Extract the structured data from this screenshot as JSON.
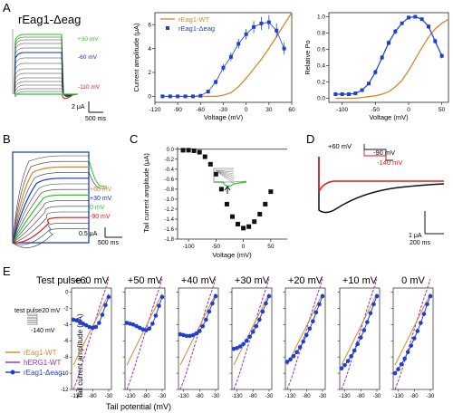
{
  "figure": {
    "panel_letters": [
      "A",
      "B",
      "C",
      "D",
      "E"
    ],
    "colors": {
      "wt": "#d08a2a",
      "deag": "#1f3fd0",
      "herg": "#9a2fb0",
      "green": "#22cc22",
      "blue_trace": "#1030c0",
      "red": "#e01818",
      "black": "#111111"
    }
  },
  "panelA": {
    "title": "rEag1-Δeag",
    "trace_labels": [
      "+30 mV",
      "-60 mV",
      "-110 mV"
    ],
    "scalebar_y": "2 μA",
    "scalebar_x": "500 ms"
  },
  "panelB": {
    "trace_labels": [
      "+60 mV",
      "+30 mV",
      "0 mV",
      "-90 mV"
    ],
    "scalebar_y": "0.5 μA",
    "scalebar_x": "500 ms"
  },
  "panelD": {
    "protocol_labels": [
      "+60 mV",
      "-90 mV",
      "-140 mV"
    ],
    "scalebar_y": "1 μA",
    "scalebar_x": "200 ms"
  },
  "panelE": {
    "header": "Test pulse :",
    "protocol_labels": [
      "test pulse",
      "-20 mV",
      "-140 mV"
    ],
    "legend": [
      "rEag1-WT",
      "hERG1-WT",
      "rEag1-Δeag"
    ],
    "ylabel": "Tail current amplitude (μA)",
    "xlabel": "Tail potential (mV)",
    "xticks": [
      "-130",
      "-80",
      "-30"
    ],
    "yticks": [
      "0",
      "-2",
      "-4",
      "-6",
      "-8",
      "-10",
      "-12"
    ]
  },
  "chart_data": [
    {
      "type": "line",
      "panel": "A-middle",
      "xlabel": "Voltage (mV)",
      "ylabel": "Current amplitude (μA)",
      "xlim": [
        -120,
        60
      ],
      "ylim": [
        -0.5,
        7
      ],
      "xticks": [
        "-120",
        "-90",
        "-60",
        "-30",
        "0",
        "30",
        "60"
      ],
      "yticks": [
        "0",
        "2",
        "4",
        "6"
      ],
      "legend_position": "top-left",
      "series": [
        {
          "name": "rEag1-WT",
          "x": [
            -110,
            -100,
            -90,
            -80,
            -70,
            -60,
            -50,
            -40,
            -30,
            -20,
            -10,
            0,
            10,
            20,
            30,
            40,
            50,
            60
          ],
          "y": [
            0,
            0,
            0,
            0,
            0,
            0,
            0,
            0,
            0.1,
            0.3,
            0.8,
            1.5,
            2.3,
            3.1,
            4.0,
            5.0,
            6.0,
            7.0
          ]
        },
        {
          "name": "rEag1-Δeag",
          "x": [
            -110,
            -100,
            -90,
            -80,
            -70,
            -60,
            -50,
            -40,
            -30,
            -20,
            -10,
            0,
            10,
            20,
            30,
            40,
            50
          ],
          "y": [
            0,
            0,
            0,
            0,
            0,
            0.05,
            0.4,
            1.2,
            2.4,
            3.3,
            4.4,
            5.2,
            5.8,
            6.1,
            6.2,
            5.5,
            4.0
          ],
          "err": [
            0.05,
            0.05,
            0.05,
            0.05,
            0.05,
            0.1,
            0.15,
            0.2,
            0.3,
            0.35,
            0.4,
            0.45,
            0.5,
            0.55,
            0.6,
            0.6,
            0.5
          ]
        }
      ]
    },
    {
      "type": "line",
      "panel": "A-right",
      "xlabel": "Voltage (mV)",
      "ylabel": "Relative Po",
      "xlim": [
        -120,
        60
      ],
      "ylim": [
        -0.05,
        1.05
      ],
      "xticks": [
        "-100",
        "-50",
        "0",
        "50"
      ],
      "yticks": [
        "0.0",
        "0.2",
        "0.4",
        "0.6",
        "0.8",
        "1.0"
      ],
      "series": [
        {
          "name": "rEag1-WT",
          "x": [
            -110,
            -100,
            -90,
            -80,
            -70,
            -60,
            -50,
            -40,
            -30,
            -20,
            -10,
            0,
            10,
            20,
            30,
            40,
            50,
            60
          ],
          "y": [
            0,
            0,
            0,
            0,
            0.01,
            0.02,
            0.03,
            0.05,
            0.08,
            0.14,
            0.22,
            0.34,
            0.48,
            0.62,
            0.75,
            0.85,
            0.92,
            0.97
          ]
        },
        {
          "name": "rEag1-Δeag",
          "x": [
            -110,
            -100,
            -90,
            -80,
            -70,
            -60,
            -50,
            -40,
            -30,
            -20,
            -10,
            0,
            10,
            20,
            30,
            40,
            50
          ],
          "y": [
            0.05,
            0.05,
            0.05,
            0.06,
            0.1,
            0.18,
            0.32,
            0.5,
            0.68,
            0.82,
            0.92,
            0.99,
            1.0,
            0.97,
            0.88,
            0.7,
            0.52
          ],
          "err": [
            0.01,
            0.01,
            0.01,
            0.01,
            0.02,
            0.02,
            0.03,
            0.03,
            0.03,
            0.03,
            0.02,
            0.02,
            0.02,
            0.02,
            0.03,
            0.03,
            0.03
          ]
        }
      ]
    },
    {
      "type": "scatter",
      "panel": "C",
      "xlabel": "Voltage (mV)",
      "ylabel": "Tail current amplitude (μA)",
      "xlim": [
        -120,
        80
      ],
      "ylim": [
        -1.8,
        0.05
      ],
      "xticks": [
        "-100",
        "-50",
        "0",
        "50"
      ],
      "yticks": [
        "0.0",
        "-0.2",
        "-0.4",
        "-0.6",
        "-0.8",
        "-1.0",
        "-1.2",
        "-1.4",
        "-1.6",
        "-1.8"
      ],
      "series": [
        {
          "name": "",
          "x": [
            -110,
            -100,
            -90,
            -80,
            -70,
            -60,
            -50,
            -40,
            -30,
            -20,
            -10,
            0,
            10,
            20,
            30,
            40,
            50
          ],
          "y": [
            -0.02,
            -0.02,
            -0.03,
            -0.06,
            -0.15,
            -0.3,
            -0.5,
            -0.8,
            -1.1,
            -1.35,
            -1.5,
            -1.58,
            -1.55,
            -1.45,
            -1.3,
            -1.1,
            -0.85
          ]
        }
      ]
    },
    {
      "type": "line",
      "panel": "E",
      "x": [
        -140,
        -130,
        -120,
        -110,
        -100,
        -90,
        -80,
        -70,
        -60,
        -50,
        -40,
        -30
      ],
      "subplots": [
        {
          "title": "+60 mV",
          "wt": [
            -9,
            -8.2,
            -7.4,
            -6.6,
            -5.8,
            -5.0,
            -4.2,
            -3.4,
            -2.6,
            -1.8,
            -1.0,
            -0.2
          ],
          "herg": [
            -12,
            -11,
            -9.8,
            -8.5,
            -7.2,
            -5.9,
            -4.6,
            -3.3,
            -2.0,
            -0.8,
            0.4,
            1.6
          ],
          "deag": [
            -3.4,
            -3.5,
            -3.7,
            -3.9,
            -4.1,
            -4.3,
            -4.4,
            -4.3,
            -3.8,
            -2.8,
            -1.6,
            -0.6
          ]
        },
        {
          "title": "+50 mV",
          "wt": [
            -9,
            -8.2,
            -7.4,
            -6.6,
            -5.8,
            -5.0,
            -4.2,
            -3.4,
            -2.6,
            -1.8,
            -1.0,
            -0.2
          ],
          "herg": [
            -12,
            -11,
            -9.8,
            -8.5,
            -7.2,
            -5.9,
            -4.6,
            -3.3,
            -2.0,
            -0.8,
            0.4,
            1.6
          ],
          "deag": [
            -3.8,
            -3.9,
            -4.0,
            -4.2,
            -4.4,
            -4.6,
            -4.7,
            -4.5,
            -3.9,
            -2.9,
            -1.7,
            -0.6
          ]
        },
        {
          "title": "+40 mV",
          "wt": [
            -9,
            -8.2,
            -7.4,
            -6.6,
            -5.8,
            -5.0,
            -4.2,
            -3.4,
            -2.6,
            -1.8,
            -1.0,
            -0.2
          ],
          "herg": [
            -12,
            -11,
            -9.8,
            -8.5,
            -7.2,
            -5.9,
            -4.6,
            -3.3,
            -2.0,
            -0.8,
            0.4,
            1.6
          ],
          "deag": [
            -5.2,
            -5.3,
            -5.4,
            -5.4,
            -5.3,
            -5.1,
            -4.8,
            -4.2,
            -3.4,
            -2.4,
            -1.4,
            -0.5
          ]
        },
        {
          "title": "+30 mV",
          "wt": [
            -9,
            -8.2,
            -7.4,
            -6.6,
            -5.8,
            -5.0,
            -4.2,
            -3.4,
            -2.6,
            -1.8,
            -1.0,
            -0.2
          ],
          "herg": [
            -12,
            -11,
            -9.8,
            -8.5,
            -7.2,
            -5.9,
            -4.6,
            -3.3,
            -2.0,
            -0.8,
            0.4,
            1.6
          ],
          "deag": [
            -7.0,
            -6.9,
            -6.7,
            -6.4,
            -6.0,
            -5.5,
            -4.9,
            -4.2,
            -3.4,
            -2.4,
            -1.4,
            -0.5
          ]
        },
        {
          "title": "+20 mV",
          "wt": [
            -9,
            -8.2,
            -7.4,
            -6.6,
            -5.8,
            -5.0,
            -4.2,
            -3.4,
            -2.6,
            -1.8,
            -1.0,
            -0.2
          ],
          "herg": [
            -12,
            -11,
            -9.8,
            -8.5,
            -7.2,
            -5.9,
            -4.6,
            -3.3,
            -2.0,
            -0.8,
            0.4,
            1.6
          ],
          "deag": [
            -8.6,
            -8.3,
            -7.9,
            -7.4,
            -6.8,
            -6.1,
            -5.3,
            -4.5,
            -3.6,
            -2.5,
            -1.5,
            -0.5
          ]
        },
        {
          "title": "+10 mV",
          "wt": [
            -9,
            -8.2,
            -7.4,
            -6.6,
            -5.8,
            -5.0,
            -4.2,
            -3.4,
            -2.6,
            -1.8,
            -1.0,
            -0.2
          ],
          "herg": [
            -12,
            -11,
            -9.8,
            -8.5,
            -7.2,
            -5.9,
            -4.6,
            -3.3,
            -2.0,
            -0.8,
            0.4,
            1.6
          ],
          "deag": [
            -9.4,
            -9.0,
            -8.5,
            -7.9,
            -7.2,
            -6.4,
            -5.6,
            -4.7,
            -3.7,
            -2.6,
            -1.5,
            -0.5
          ]
        },
        {
          "title": "0 mV",
          "wt": [
            -9,
            -8.2,
            -7.4,
            -6.6,
            -5.8,
            -5.0,
            -4.2,
            -3.4,
            -2.6,
            -1.8,
            -1.0,
            -0.2
          ],
          "herg": [
            -12,
            -11,
            -9.8,
            -8.5,
            -7.2,
            -5.9,
            -4.6,
            -3.3,
            -2.0,
            -0.8,
            0.4,
            1.6
          ],
          "deag": [
            -10.0,
            -9.5,
            -8.9,
            -8.2,
            -7.4,
            -6.6,
            -5.7,
            -4.8,
            -3.8,
            -2.7,
            -1.5,
            -0.5
          ]
        }
      ],
      "ylim": [
        -12,
        0.5
      ]
    }
  ]
}
